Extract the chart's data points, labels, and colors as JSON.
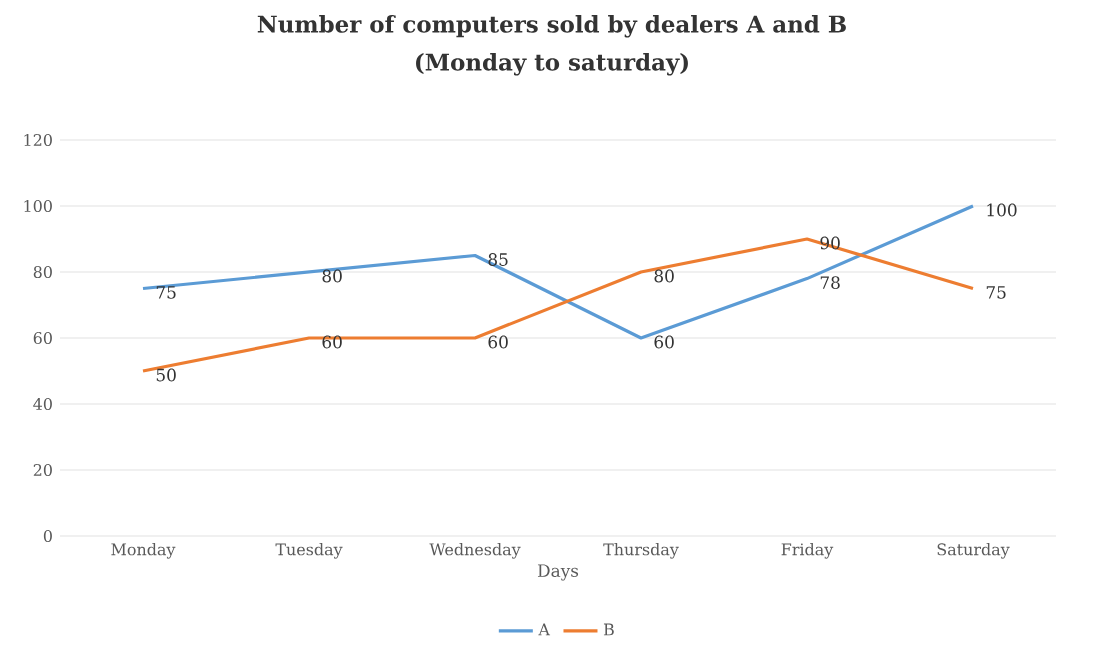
{
  "chart_data": {
    "type": "line",
    "title": "Number of computers sold by dealers A and B",
    "subtitle": "(Monday to saturday)",
    "xlabel": "Days",
    "categories": [
      "Monday",
      "Tuesday",
      "Wednesday",
      "Thursday",
      "Friday",
      "Saturday"
    ],
    "series": [
      {
        "name": "A",
        "color": "#5b9bd5",
        "values": [
          75,
          80,
          85,
          60,
          78,
          100
        ]
      },
      {
        "name": "B",
        "color": "#ed7d31",
        "values": [
          50,
          60,
          60,
          80,
          90,
          75
        ]
      }
    ],
    "ylim": [
      0,
      120
    ],
    "yticks": [
      0,
      20,
      40,
      60,
      80,
      100,
      120
    ],
    "grid": "y",
    "legend": "bottom",
    "data_labels": true,
    "marker": "none",
    "line_style": "solid"
  }
}
